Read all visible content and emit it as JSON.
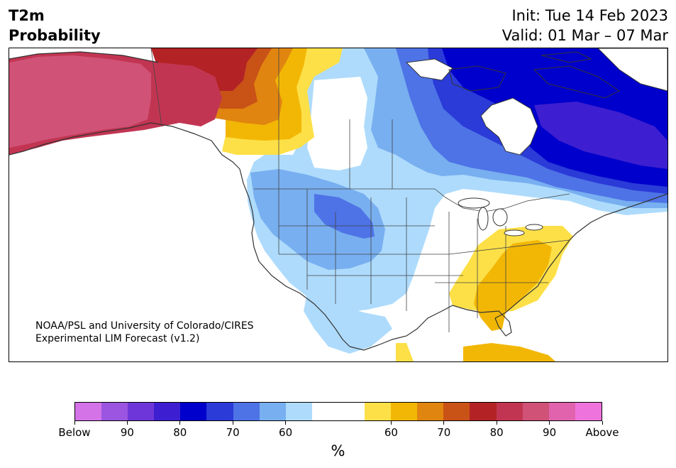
{
  "header": {
    "title_line1": "T2m",
    "title_line2": "Probability",
    "init": "Init: Tue 14 Feb 2023",
    "valid": "Valid: 01 Mar – 07 Mar"
  },
  "credit": {
    "line1": "NOAA/PSL and University of Colorado/CIRES",
    "line2": "Experimental LIM Forecast (v1.2)"
  },
  "colorbar": {
    "colors": [
      "#d472e8",
      "#9b55e0",
      "#6e36d8",
      "#3d1fd1",
      "#0000cc",
      "#2a3bd8",
      "#4e73e6",
      "#78aff0",
      "#aedbfc",
      "#ffffff",
      "#ffffff",
      "#fde047",
      "#f2b705",
      "#e08510",
      "#c95217",
      "#b32225",
      "#c23552",
      "#d05277",
      "#e163ad",
      "#ee73dc"
    ],
    "tick_labels": [
      "Below",
      "90",
      "80",
      "70",
      "60",
      "60",
      "70",
      "80",
      "90",
      "Above"
    ],
    "unit": "%"
  },
  "map_colors": {
    "water": "#ffffff",
    "coast": "#333333",
    "alaska_above": "#d05277",
    "alaska_90": "#c23552",
    "yukon_80": "#b32225",
    "yukon_75": "#c95217",
    "bc_70": "#e08510",
    "bc_65": "#f2b705",
    "bc_60": "#fde047",
    "west_60": "#aedbfc",
    "west_65": "#78aff0",
    "west_70": "#4e73e6",
    "east_75": "#2a3bd8",
    "east_80": "#0000cc",
    "east_85": "#3d1fd1",
    "se_60": "#fde047",
    "se_65": "#f2b705"
  }
}
